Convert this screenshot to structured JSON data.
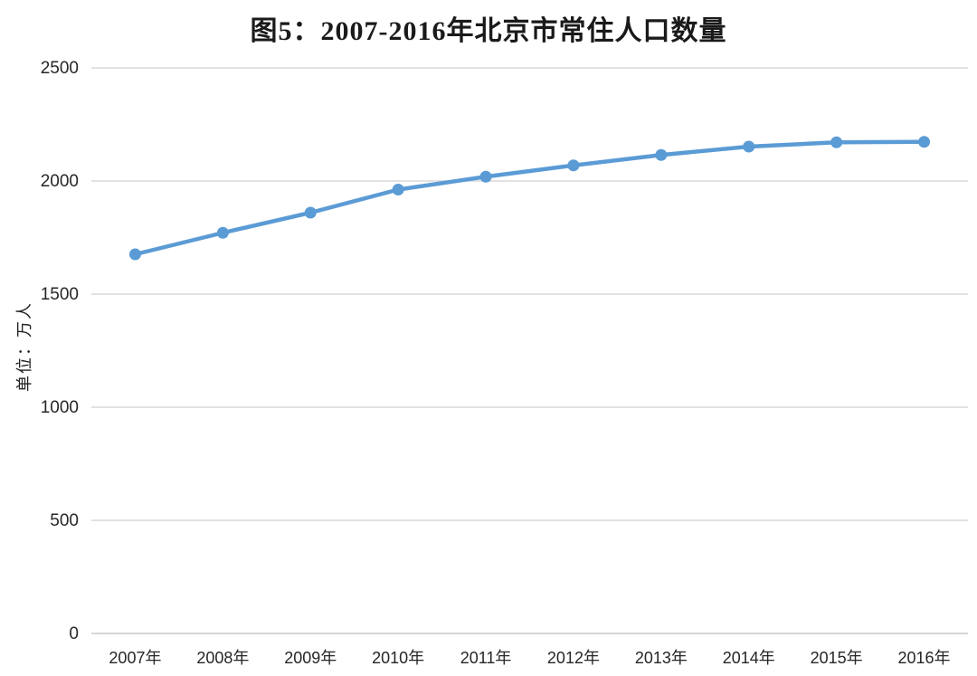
{
  "title": "图5：2007-2016年北京市常住人口数量",
  "chart_data": {
    "type": "line",
    "title": "图5：2007-2016年北京市常住人口数量",
    "xlabel": "",
    "ylabel": "单位：万人",
    "categories": [
      "2007年",
      "2008年",
      "2009年",
      "2010年",
      "2011年",
      "2012年",
      "2013年",
      "2014年",
      "2015年",
      "2016年"
    ],
    "series": [
      {
        "name": "北京市常住人口",
        "values": [
          1676,
          1771,
          1860,
          1962,
          2019,
          2069,
          2115,
          2152,
          2171,
          2173
        ]
      }
    ],
    "ylim": [
      0,
      2500
    ],
    "yticks": [
      0,
      500,
      1000,
      1500,
      2000,
      2500
    ],
    "grid": true,
    "legend_position": "none",
    "line_color": "#5B9BD5",
    "marker_color": "#5B9BD5",
    "gridline_color": "#d9d9d9",
    "axis_line_color": "#c8c8c8",
    "tick_label_color": "#262626",
    "title_color": "#1a1a1a"
  }
}
